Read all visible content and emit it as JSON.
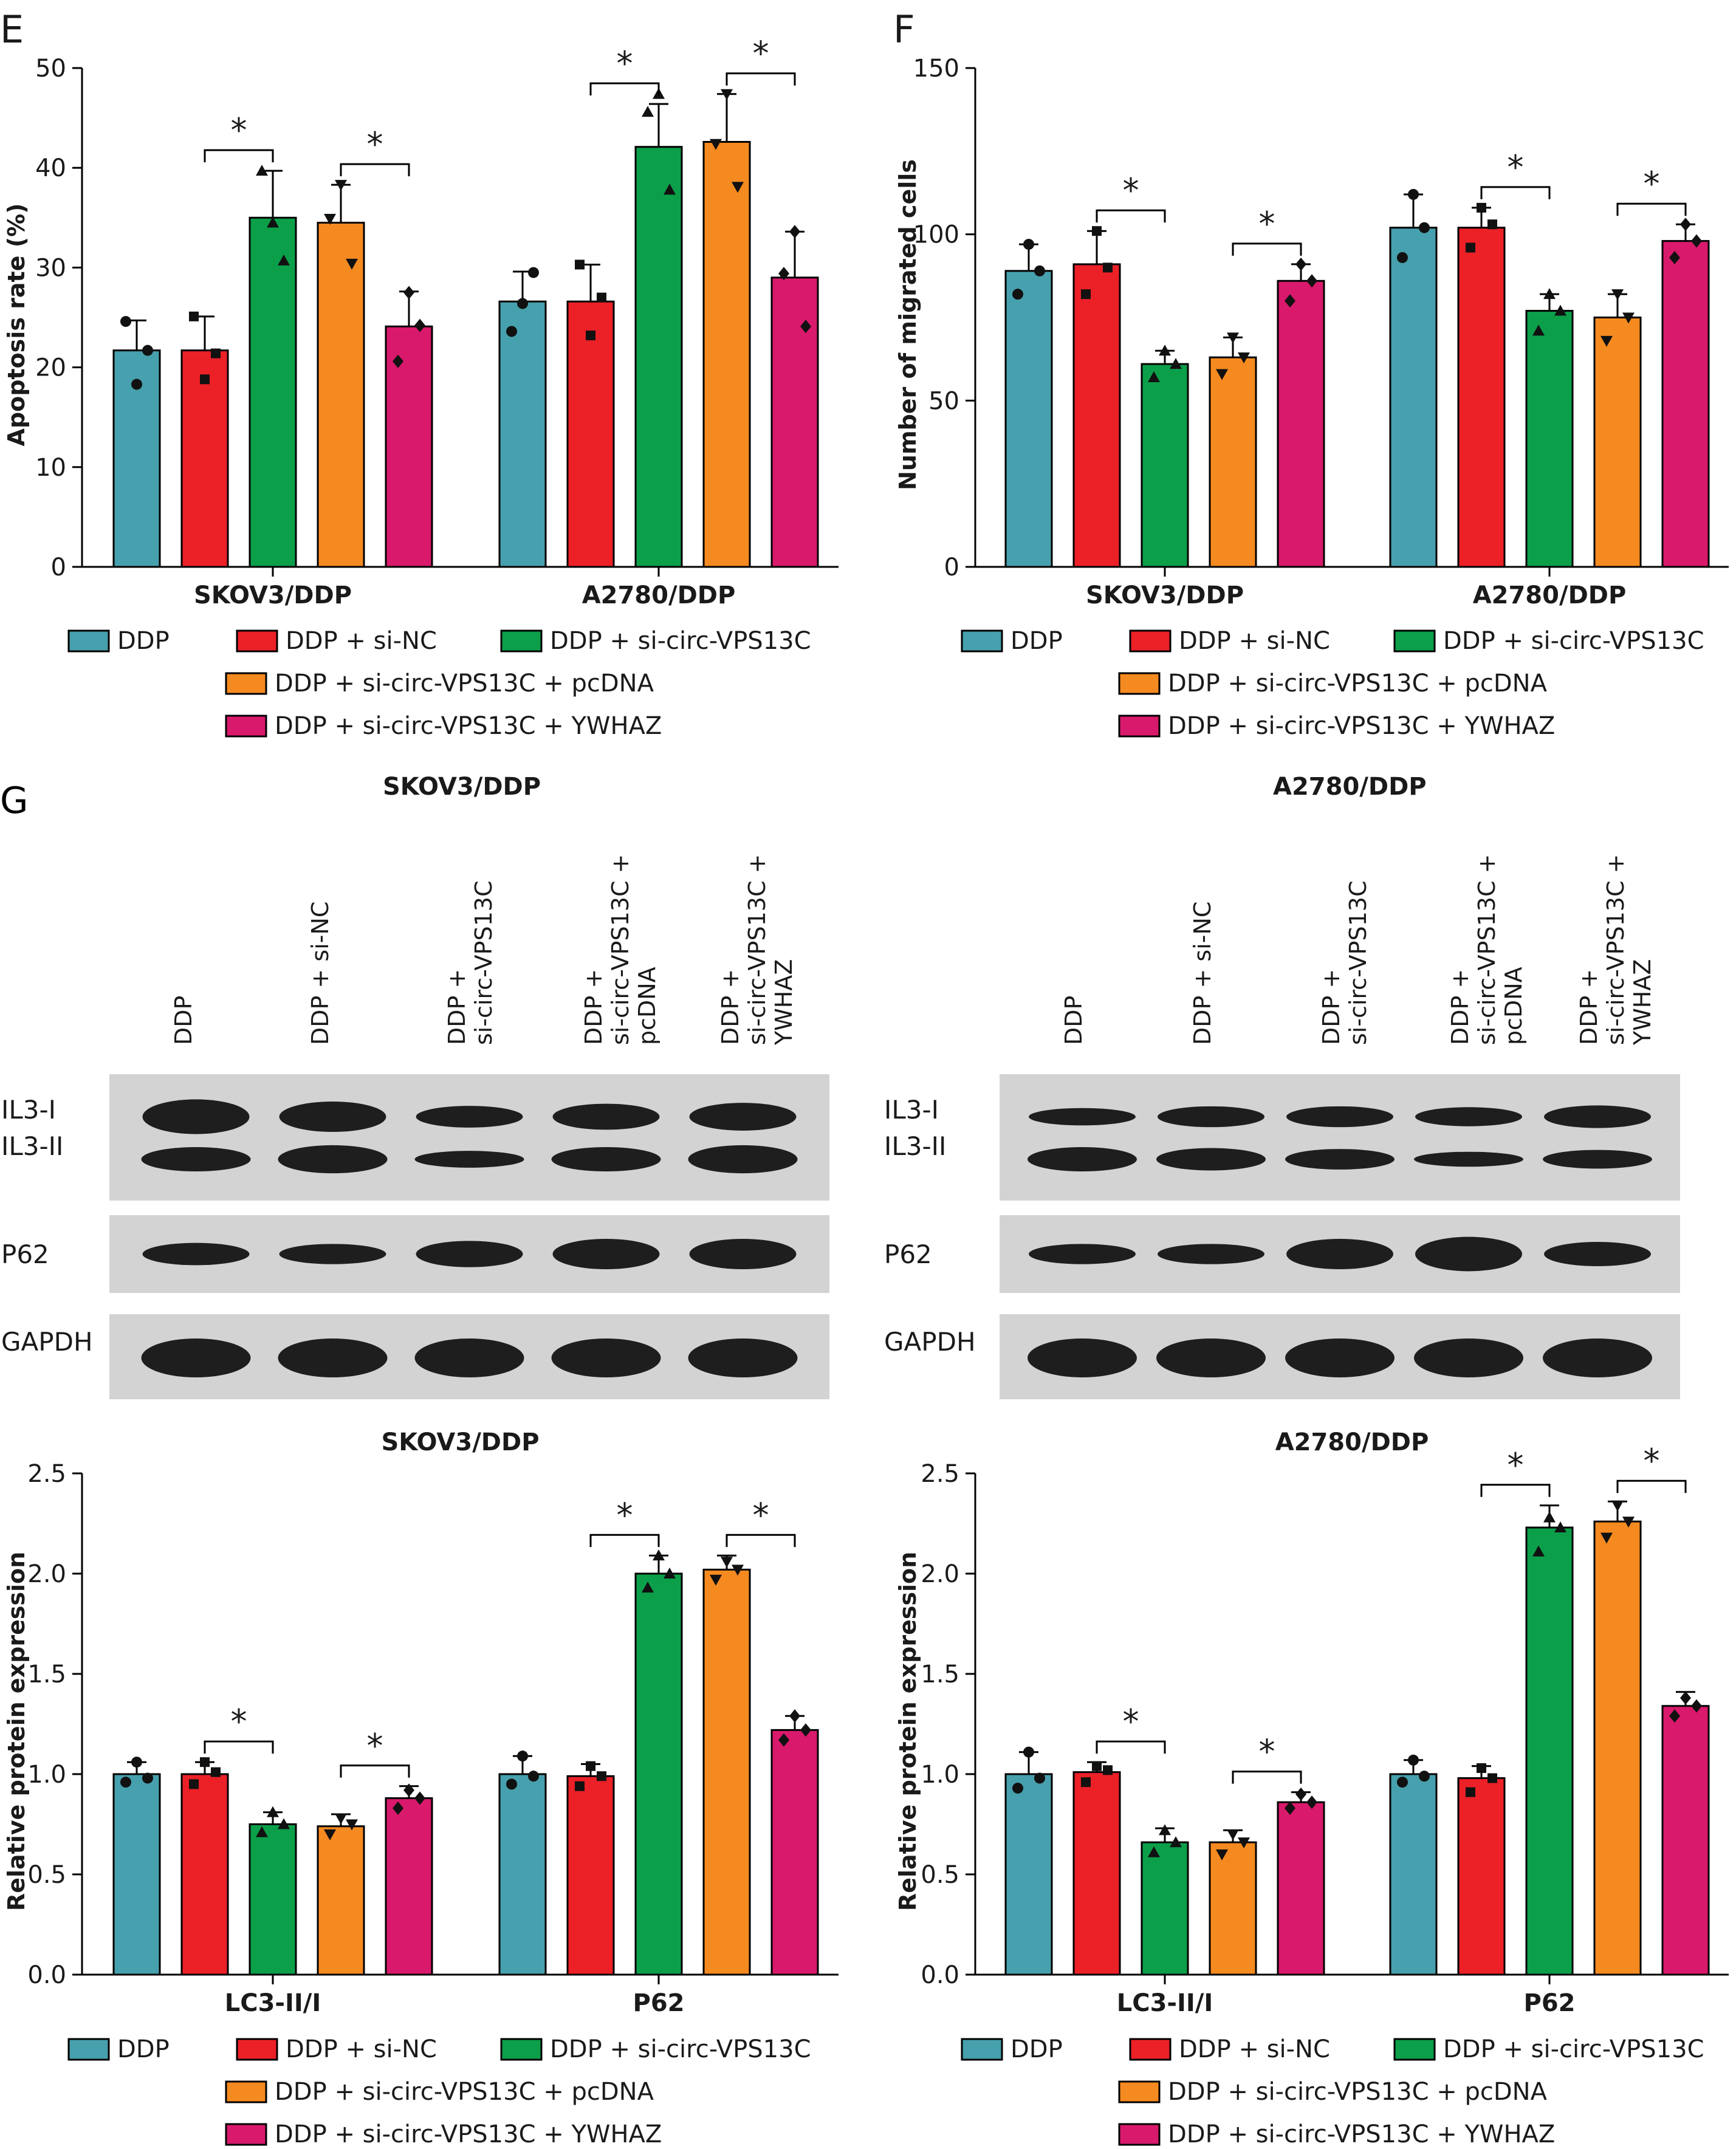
{
  "panel_letters": {
    "e": "E",
    "f": "F",
    "g": "G"
  },
  "group_labels": [
    "DDP",
    "DDP + si-NC",
    "DDP + si-circ-VPS13C",
    "DDP + si-circ-VPS13C + pcDNA",
    "DDP + si-circ-VPS13C + YWHAZ"
  ],
  "legend_entries": [
    "DDP",
    "DDP + si-NC",
    "DDP + si-circ-VPS13C",
    "DDP + si-circ-VPS13C + pcDNA",
    "DDP + si-circ-VPS13C + YWHAZ"
  ],
  "colors": {
    "DDP": "#47a0ad",
    "si_NC": "#ec2027",
    "si_circ": "#0c9f4a",
    "pcDNA": "#f58a20",
    "YWHAZ": "#d9196c"
  },
  "blot": {
    "skov3_title": "SKOV3/DDP",
    "a2780_title": "A2780/DDP",
    "lane_labels": [
      "DDP",
      "DDP + si-NC",
      "DDP +\nsi-circ-VPS13C",
      "DDP +\nsi-circ-VPS13C +\npcDNA",
      "DDP +\nsi-circ-VPS13C +\nYWHAZ"
    ],
    "row_labels": {
      "il3_1": "IL3-I",
      "il3_2": "IL3-II",
      "p62": "P62",
      "gapdh": "GAPDH"
    }
  },
  "chart_data": [
    {
      "id": "E",
      "type": "bar",
      "categories": [
        "SKOV3/DDP",
        "A2780/DDP"
      ],
      "ylabel": "Apoptosis rate (%)",
      "ylim": [
        0,
        50
      ],
      "yticks": [
        0,
        10,
        20,
        30,
        40,
        50
      ],
      "series": [
        {
          "name": "DDP",
          "values": [
            21.7,
            26.6
          ],
          "errors": [
            3.0,
            3.0
          ],
          "points": [
            [
              18.3,
              24.6,
              21.7
            ],
            [
              26.4,
              23.6,
              29.5
            ]
          ]
        },
        {
          "name": "DDP + si-NC",
          "values": [
            21.7,
            26.6
          ],
          "errors": [
            3.4,
            3.7
          ],
          "points": [
            [
              18.8,
              25.1,
              21.4
            ],
            [
              23.2,
              30.3,
              27.0
            ]
          ]
        },
        {
          "name": "DDP + si-circ-VPS13C",
          "values": [
            35.0,
            42.1
          ],
          "errors": [
            4.7,
            4.3
          ],
          "points": [
            [
              34.5,
              39.7,
              30.7
            ],
            [
              47.4,
              45.6,
              37.8
            ]
          ]
        },
        {
          "name": "DDP + si-circ-VPS13C + pcDNA",
          "values": [
            34.5,
            42.6
          ],
          "errors": [
            3.8,
            4.8
          ],
          "points": [
            [
              38.3,
              34.9,
              30.4
            ],
            [
              47.4,
              42.4,
              38.1
            ]
          ]
        },
        {
          "name": "DDP + si-circ-VPS13C + YWHAZ",
          "values": [
            24.1,
            29.0
          ],
          "errors": [
            3.5,
            4.6
          ],
          "points": [
            [
              27.5,
              20.6,
              24.2
            ],
            [
              33.6,
              29.4,
              24.1
            ]
          ]
        }
      ],
      "significance": [
        {
          "group": 0,
          "from": 1,
          "to": 2,
          "label": "*"
        },
        {
          "group": 0,
          "from": 3,
          "to": 4,
          "label": "*"
        },
        {
          "group": 1,
          "from": 1,
          "to": 2,
          "label": "*"
        },
        {
          "group": 1,
          "from": 3,
          "to": 4,
          "label": "*"
        }
      ]
    },
    {
      "id": "F",
      "type": "bar",
      "categories": [
        "SKOV3/DDP",
        "A2780/DDP"
      ],
      "ylabel": "Number of migrated cells",
      "ylim": [
        0,
        150
      ],
      "yticks": [
        0,
        50,
        100,
        150
      ],
      "series": [
        {
          "name": "DDP",
          "values": [
            89,
            102
          ],
          "errors": [
            8,
            10
          ],
          "points": [
            [
              97,
              82,
              89
            ],
            [
              112,
              93,
              102
            ]
          ]
        },
        {
          "name": "DDP + si-NC",
          "values": [
            91,
            102
          ],
          "errors": [
            10,
            6
          ],
          "points": [
            [
              101,
              82,
              90
            ],
            [
              108,
              96,
              103
            ]
          ]
        },
        {
          "name": "DDP + si-circ-VPS13C",
          "values": [
            61,
            77
          ],
          "errors": [
            4,
            5
          ],
          "points": [
            [
              65,
              57,
              61
            ],
            [
              82,
              71,
              77
            ]
          ]
        },
        {
          "name": "DDP + si-circ-VPS13C + pcDNA",
          "values": [
            63,
            75
          ],
          "errors": [
            6,
            7
          ],
          "points": [
            [
              69,
              58,
              63
            ],
            [
              82,
              68,
              75
            ]
          ]
        },
        {
          "name": "DDP + si-circ-VPS13C + YWHAZ",
          "values": [
            86,
            98
          ],
          "errors": [
            5,
            5
          ],
          "points": [
            [
              91,
              80,
              86
            ],
            [
              103,
              93,
              98
            ]
          ]
        }
      ],
      "significance": [
        {
          "group": 0,
          "from": 1,
          "to": 2,
          "label": "*"
        },
        {
          "group": 0,
          "from": 3,
          "to": 4,
          "label": "*"
        },
        {
          "group": 1,
          "from": 1,
          "to": 2,
          "label": "*"
        },
        {
          "group": 1,
          "from": 3,
          "to": 4,
          "label": "*"
        }
      ]
    },
    {
      "id": "G-SKOV3",
      "type": "bar",
      "title": "SKOV3/DDP",
      "categories": [
        "LC3-II/I",
        "P62"
      ],
      "ylabel": "Relative protein expression",
      "ylim": [
        0,
        2.5
      ],
      "yticks": [
        0,
        0.5,
        1.0,
        1.5,
        2.0,
        2.5
      ],
      "series": [
        {
          "name": "DDP",
          "values": [
            1.0,
            1.0
          ],
          "errors": [
            0.06,
            0.09
          ],
          "points": [
            [
              1.06,
              0.96,
              0.98
            ],
            [
              1.09,
              0.95,
              0.99
            ]
          ]
        },
        {
          "name": "DDP + si-NC",
          "values": [
            1.0,
            0.99
          ],
          "errors": [
            0.06,
            0.06
          ],
          "points": [
            [
              1.06,
              0.95,
              1.01
            ],
            [
              1.04,
              0.94,
              0.99
            ]
          ]
        },
        {
          "name": "DDP + si-circ-VPS13C",
          "values": [
            0.75,
            2.0
          ],
          "errors": [
            0.06,
            0.09
          ],
          "points": [
            [
              0.81,
              0.71,
              0.75
            ],
            [
              2.09,
              1.93,
              2.0
            ]
          ]
        },
        {
          "name": "DDP + si-circ-VPS13C + pcDNA",
          "values": [
            0.74,
            2.02
          ],
          "errors": [
            0.06,
            0.07
          ],
          "points": [
            [
              0.78,
              0.7,
              0.75
            ],
            [
              2.06,
              1.97,
              2.02
            ]
          ]
        },
        {
          "name": "DDP + si-circ-VPS13C + YWHAZ",
          "values": [
            0.88,
            1.22
          ],
          "errors": [
            0.06,
            0.07
          ],
          "points": [
            [
              0.92,
              0.83,
              0.88
            ],
            [
              1.29,
              1.17,
              1.22
            ]
          ]
        }
      ],
      "significance": [
        {
          "group": 0,
          "from": 1,
          "to": 2,
          "label": "*"
        },
        {
          "group": 0,
          "from": 3,
          "to": 4,
          "label": "*"
        },
        {
          "group": 1,
          "from": 1,
          "to": 2,
          "label": "*"
        },
        {
          "group": 1,
          "from": 3,
          "to": 4,
          "label": "*"
        }
      ]
    },
    {
      "id": "G-A2780",
      "type": "bar",
      "title": "A2780/DDP",
      "categories": [
        "LC3-II/I",
        "P62"
      ],
      "ylabel": "Relative protein expression",
      "ylim": [
        0,
        2.5
      ],
      "yticks": [
        0,
        0.5,
        1.0,
        1.5,
        2.0,
        2.5
      ],
      "series": [
        {
          "name": "DDP",
          "values": [
            1.0,
            1.0
          ],
          "errors": [
            0.11,
            0.07
          ],
          "points": [
            [
              1.11,
              0.93,
              0.98
            ],
            [
              1.07,
              0.96,
              0.99
            ]
          ]
        },
        {
          "name": "DDP + si-NC",
          "values": [
            1.01,
            0.98
          ],
          "errors": [
            0.05,
            0.06
          ],
          "points": [
            [
              1.04,
              0.96,
              1.02
            ],
            [
              1.03,
              0.91,
              0.98
            ]
          ]
        },
        {
          "name": "DDP + si-circ-VPS13C",
          "values": [
            0.66,
            2.23
          ],
          "errors": [
            0.07,
            0.11
          ],
          "points": [
            [
              0.72,
              0.61,
              0.66
            ],
            [
              2.28,
              2.11,
              2.23
            ]
          ]
        },
        {
          "name": "DDP + si-circ-VPS13C + pcDNA",
          "values": [
            0.66,
            2.26
          ],
          "errors": [
            0.06,
            0.1
          ],
          "points": [
            [
              0.7,
              0.6,
              0.66
            ],
            [
              2.34,
              2.18,
              2.26
            ]
          ]
        },
        {
          "name": "DDP + si-circ-VPS13C + YWHAZ",
          "values": [
            0.86,
            1.34
          ],
          "errors": [
            0.05,
            0.07
          ],
          "points": [
            [
              0.9,
              0.83,
              0.86
            ],
            [
              1.38,
              1.29,
              1.34
            ]
          ]
        }
      ],
      "significance": [
        {
          "group": 0,
          "from": 1,
          "to": 2,
          "label": "*"
        },
        {
          "group": 0,
          "from": 3,
          "to": 4,
          "label": "*"
        },
        {
          "group": 1,
          "from": 1,
          "to": 2,
          "label": "*"
        },
        {
          "group": 1,
          "from": 3,
          "to": 4,
          "label": "*"
        }
      ]
    }
  ]
}
